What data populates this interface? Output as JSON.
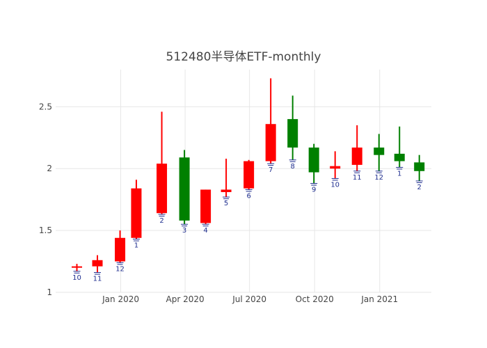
{
  "chart_data": {
    "type": "candlestick",
    "title": "512480半导体ETF-monthly",
    "ylim": [
      1.0,
      2.8
    ],
    "y_ticks": [
      "1",
      "1.5",
      "2",
      "2.5"
    ],
    "x_tick_labels": [
      {
        "date": "2020-01-01",
        "label": "Jan 2020"
      },
      {
        "date": "2020-04-01",
        "label": "Apr 2020"
      },
      {
        "date": "2020-07-01",
        "label": "Jul 2020"
      },
      {
        "date": "2020-10-01",
        "label": "Oct 2020"
      },
      {
        "date": "2021-01-01",
        "label": "Jan 2021"
      }
    ],
    "increasing_color": "#ff0000",
    "decreasing_color": "#008000",
    "candles": [
      {
        "date": "2019-10-31",
        "open": 1.2,
        "high": 1.23,
        "low": 1.17,
        "close": 1.21,
        "label": "10"
      },
      {
        "date": "2019-11-29",
        "open": 1.21,
        "high": 1.3,
        "low": 1.16,
        "close": 1.26,
        "label": "11"
      },
      {
        "date": "2019-12-31",
        "open": 1.25,
        "high": 1.5,
        "low": 1.24,
        "close": 1.44,
        "label": "12"
      },
      {
        "date": "2020-01-23",
        "open": 1.44,
        "high": 1.91,
        "low": 1.43,
        "close": 1.84,
        "label": "1"
      },
      {
        "date": "2020-02-28",
        "open": 1.64,
        "high": 2.46,
        "low": 1.63,
        "close": 2.04,
        "label": "2"
      },
      {
        "date": "2020-03-31",
        "open": 2.09,
        "high": 2.15,
        "low": 1.55,
        "close": 1.58,
        "label": "3"
      },
      {
        "date": "2020-04-30",
        "open": 1.56,
        "high": 1.83,
        "low": 1.55,
        "close": 1.83,
        "label": "4"
      },
      {
        "date": "2020-05-29",
        "open": 1.81,
        "high": 2.08,
        "low": 1.77,
        "close": 1.83,
        "label": "5"
      },
      {
        "date": "2020-06-30",
        "open": 1.84,
        "high": 2.07,
        "low": 1.83,
        "close": 2.06,
        "label": "6"
      },
      {
        "date": "2020-07-31",
        "open": 2.06,
        "high": 2.73,
        "low": 2.04,
        "close": 2.36,
        "label": "7"
      },
      {
        "date": "2020-08-31",
        "open": 2.4,
        "high": 2.59,
        "low": 2.07,
        "close": 2.17,
        "label": "8"
      },
      {
        "date": "2020-09-30",
        "open": 2.17,
        "high": 2.2,
        "low": 1.88,
        "close": 1.97,
        "label": "9"
      },
      {
        "date": "2020-10-30",
        "open": 2.0,
        "high": 2.14,
        "low": 1.92,
        "close": 2.02,
        "label": "10"
      },
      {
        "date": "2020-11-30",
        "open": 2.03,
        "high": 2.35,
        "low": 1.98,
        "close": 2.17,
        "label": "11"
      },
      {
        "date": "2020-12-31",
        "open": 2.17,
        "high": 2.28,
        "low": 1.98,
        "close": 2.11,
        "label": "12"
      },
      {
        "date": "2021-01-29",
        "open": 2.12,
        "high": 2.34,
        "low": 2.01,
        "close": 2.06,
        "label": "1"
      },
      {
        "date": "2021-02-26",
        "open": 2.05,
        "high": 2.11,
        "low": 1.9,
        "close": 1.98,
        "label": "2"
      }
    ]
  }
}
